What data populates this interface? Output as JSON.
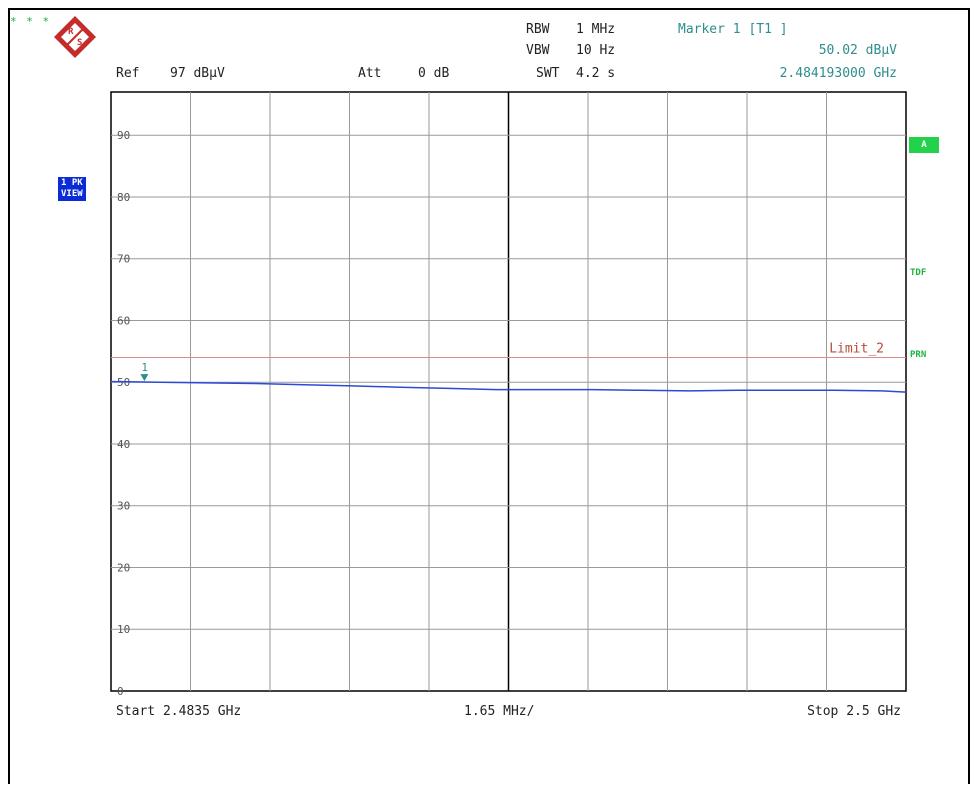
{
  "header": {
    "ref_label": "Ref",
    "ref_value": "97 dBµV",
    "att_label": "Att",
    "att_value": "0 dB",
    "rbw_label": "RBW",
    "rbw_value": "1 MHz",
    "vbw_label": "VBW",
    "vbw_value": "10 Hz",
    "swt_label": "SWT",
    "swt_value": "4.2 s",
    "marker_title": "Marker 1 [T1 ]",
    "marker_level": "50.02 dBµV",
    "marker_freq": "2.484193000 GHz"
  },
  "side_labels": {
    "trace_badge_line1": "1 PK",
    "trace_badge_line2": "VIEW",
    "box_a": "A",
    "tdf": "TDF",
    "prn": "PRN"
  },
  "footer": {
    "start": "Start 2.4835 GHz",
    "span_per_div": "1.65 MHz/",
    "stop": "Stop 2.5 GHz"
  },
  "colors": {
    "trace": "#2a4bd7",
    "limit": "#d98a8a",
    "limit_text": "#b84a3a",
    "marker": "#2f8d8d",
    "badge": "#0a2bd6",
    "indicator_green": "#22d24a"
  },
  "chart_data": {
    "type": "line",
    "xlim": [
      2.4835,
      2.5
    ],
    "ylim": [
      0,
      97
    ],
    "x_unit": "GHz",
    "y_unit": "dBµV",
    "yticks": [
      {
        "value": 90,
        "label": "90"
      },
      {
        "value": 80,
        "label": "80"
      },
      {
        "value": 70,
        "label": "70"
      },
      {
        "value": 60,
        "label": "60"
      },
      {
        "value": 50,
        "label": "50"
      },
      {
        "value": 40,
        "label": "40"
      },
      {
        "value": 30,
        "label": "30"
      },
      {
        "value": 20,
        "label": "20"
      },
      {
        "value": 10,
        "label": "10"
      },
      {
        "value": 0,
        "label": "0"
      }
    ],
    "grid": true,
    "limit": {
      "name": "Limit_2",
      "value": 54
    },
    "marker": {
      "label": "1",
      "x": 2.484193,
      "y": 50.02
    },
    "series": [
      {
        "x": [
          2.4835,
          2.4845,
          2.4855,
          2.4865,
          2.4875,
          2.4885,
          2.4895,
          2.4905,
          2.4915,
          2.4925,
          2.4935,
          2.4945,
          2.4955,
          2.4965,
          2.4975,
          2.4985,
          2.4995,
          2.5
        ],
        "y": [
          50.1,
          50.0,
          49.9,
          49.8,
          49.6,
          49.4,
          49.2,
          49.0,
          48.8,
          48.8,
          48.8,
          48.7,
          48.6,
          48.7,
          48.7,
          48.7,
          48.6,
          48.4
        ]
      }
    ]
  }
}
